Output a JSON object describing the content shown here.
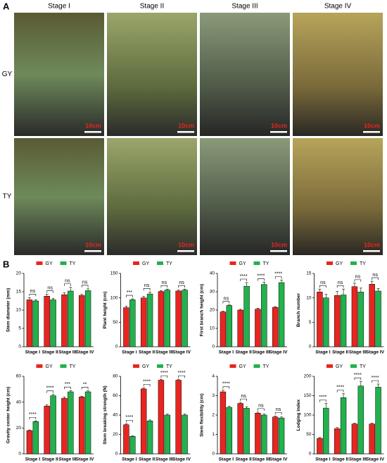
{
  "photo_panel": {
    "label": "A",
    "stages": [
      "Stage I",
      "Stage II",
      "Stage III",
      "Stage IV"
    ],
    "rows": [
      "GY",
      "TY"
    ],
    "scale_bar": "10cm"
  },
  "panel_b_label": "B",
  "chart_data": [
    {
      "type": "bar",
      "y_label": "Stem diameter (mm)",
      "categories": [
        "Stage I",
        "Stage II",
        "Stage III",
        "Stage IV"
      ],
      "series": [
        {
          "name": "GY",
          "color": "#e8251f",
          "values": [
            12.8,
            13.8,
            14.2,
            14.0
          ],
          "errors": [
            0.6,
            0.5,
            0.5,
            0.3
          ]
        },
        {
          "name": "TY",
          "color": "#22b14c",
          "values": [
            12.5,
            12.8,
            15.2,
            15.3
          ],
          "errors": [
            0.3,
            0.4,
            1.0,
            0.5
          ]
        }
      ],
      "significance": [
        "ns",
        "ns",
        "ns",
        "ns"
      ],
      "ylim": [
        0,
        20
      ],
      "yticks": [
        0,
        5,
        10,
        15,
        20
      ]
    },
    {
      "type": "bar",
      "y_label": "Plant height (cm)",
      "categories": [
        "Stage i",
        "Stage II",
        "Stage III",
        "Stage IV"
      ],
      "series": [
        {
          "name": "GY",
          "color": "#e8251f",
          "values": [
            80,
            100,
            113,
            114
          ],
          "errors": [
            3,
            3,
            2,
            2
          ]
        },
        {
          "name": "TY",
          "color": "#22b14c",
          "values": [
            96,
            108,
            116,
            116
          ],
          "errors": [
            2,
            4,
            2,
            2
          ]
        }
      ],
      "significance": [
        "***",
        "ns",
        "ns",
        "ns"
      ],
      "ylim": [
        0,
        150
      ],
      "yticks": [
        0,
        50,
        100,
        150
      ]
    },
    {
      "type": "bar",
      "y_label": "First branch height (cm)",
      "categories": [
        "Stage I",
        "Stage II",
        "Stage III",
        "Stage IV"
      ],
      "series": [
        {
          "name": "GY",
          "color": "#e8251f",
          "values": [
            19,
            20,
            20.5,
            21.5
          ],
          "errors": [
            0.4,
            0.4,
            0.5,
            0.4
          ]
        },
        {
          "name": "TY",
          "color": "#22b14c",
          "values": [
            22.5,
            33,
            34,
            35
          ],
          "errors": [
            0.3,
            2,
            1.2,
            1.3
          ]
        }
      ],
      "significance": [
        "ns",
        "****",
        "****",
        "****"
      ],
      "ylim": [
        0,
        40
      ],
      "yticks": [
        0,
        10,
        20,
        30,
        40
      ]
    },
    {
      "type": "bar",
      "y_label": "Branch number",
      "categories": [
        "Stage I",
        "Stage II",
        "Stage III",
        "Stage IV"
      ],
      "series": [
        {
          "name": "GY",
          "color": "#e8251f",
          "values": [
            11.2,
            10.5,
            12.3,
            12.8
          ],
          "errors": [
            0.6,
            0.8,
            0.7,
            0.6
          ]
        },
        {
          "name": "TY",
          "color": "#22b14c",
          "values": [
            10,
            10.6,
            11.2,
            11.4
          ],
          "errors": [
            0.7,
            1.2,
            0.8,
            0.5
          ]
        }
      ],
      "significance": [
        "ns",
        "ns",
        "ns",
        "ns"
      ],
      "ylim": [
        0,
        15
      ],
      "yticks": [
        0,
        5,
        10,
        15
      ]
    },
    {
      "type": "bar",
      "y_label": "Gravity center height (cm)",
      "categories": [
        "Stage I",
        "Stage II",
        "Stage III",
        "Stage IV"
      ],
      "series": [
        {
          "name": "GY",
          "color": "#e8251f",
          "values": [
            18,
            37,
            43,
            44
          ],
          "errors": [
            0.5,
            0.8,
            1,
            0.6
          ]
        },
        {
          "name": "TY",
          "color": "#22b14c",
          "values": [
            25,
            45,
            48,
            48
          ],
          "errors": [
            0.5,
            1,
            1,
            0.8
          ]
        }
      ],
      "significance": [
        "****",
        "****",
        "***",
        "**"
      ],
      "ylim": [
        0,
        60
      ],
      "yticks": [
        0,
        20,
        40,
        60
      ]
    },
    {
      "type": "bar",
      "y_label": "Stem breaking strength (N)",
      "categories": [
        "Stage I",
        "Stage II",
        "Stage III",
        "Stage IV"
      ],
      "series": [
        {
          "name": "GY",
          "color": "#e8251f",
          "values": [
            30,
            67,
            76,
            76
          ],
          "errors": [
            1,
            1,
            1,
            1
          ]
        },
        {
          "name": "TY",
          "color": "#22b14c",
          "values": [
            18,
            34,
            40,
            40
          ],
          "errors": [
            0.5,
            1,
            1,
            1
          ]
        }
      ],
      "significance": [
        "****",
        "****",
        "****",
        "****"
      ],
      "ylim": [
        0,
        80
      ],
      "yticks": [
        0,
        20,
        40,
        60,
        80
      ]
    },
    {
      "type": "bar",
      "y_label": "Stem flexibility (cm)",
      "categories": [
        "Stage I",
        "Stage II",
        "Stage III",
        "Stage IV"
      ],
      "series": [
        {
          "name": "GY",
          "color": "#e8251f",
          "values": [
            3.2,
            2.6,
            2.1,
            1.9
          ],
          "errors": [
            0.08,
            0.05,
            0.05,
            0.05
          ]
        },
        {
          "name": "TY",
          "color": "#22b14c",
          "values": [
            2.4,
            2.35,
            2.0,
            1.85
          ],
          "errors": [
            0.05,
            0.08,
            0.05,
            0.05
          ]
        }
      ],
      "significance": [
        "****",
        "ns",
        "ns",
        "ns"
      ],
      "ylim": [
        0,
        4
      ],
      "yticks": [
        0,
        1,
        2,
        3,
        4
      ]
    },
    {
      "type": "bar",
      "y_label": "Lodging index",
      "categories": [
        "Stage I",
        "Stage II",
        "Stage III",
        "Stage IV"
      ],
      "series": [
        {
          "name": "GY",
          "color": "#e8251f",
          "values": [
            40,
            65,
            77,
            77
          ],
          "errors": [
            2,
            3,
            2,
            2
          ]
        },
        {
          "name": "TY",
          "color": "#22b14c",
          "values": [
            118,
            145,
            175,
            172
          ],
          "errors": [
            12,
            10,
            12,
            8
          ]
        }
      ],
      "significance": [
        "****",
        "****",
        "****",
        "****"
      ],
      "ylim": [
        0,
        200
      ],
      "yticks": [
        0,
        50,
        100,
        150,
        200
      ]
    }
  ]
}
